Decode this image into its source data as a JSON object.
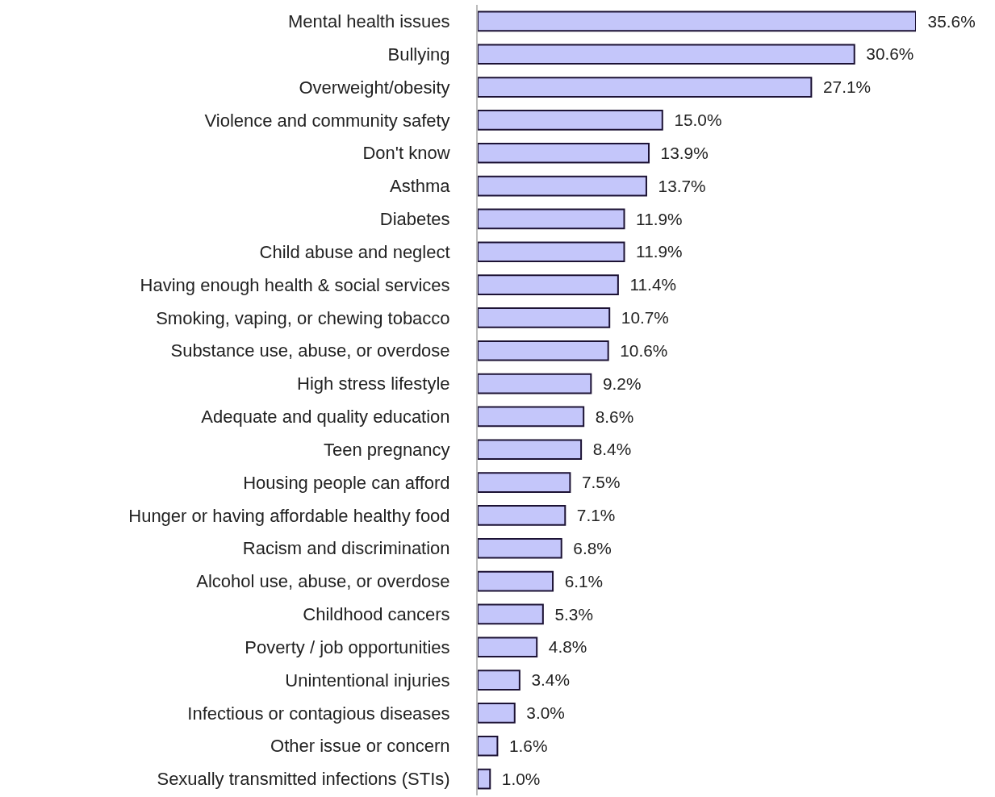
{
  "chart_data": {
    "type": "bar",
    "orientation": "horizontal",
    "categories": [
      "Mental health issues",
      "Bullying",
      "Overweight/obesity",
      "Violence and community safety",
      "Don't know",
      "Asthma",
      "Diabetes",
      "Child abuse and neglect",
      "Having enough health & social services",
      "Smoking, vaping, or chewing tobacco",
      "Substance use, abuse, or overdose",
      "High stress lifestyle",
      "Adequate and quality education",
      "Teen pregnancy",
      "Housing people can afford",
      "Hunger or having affordable healthy food",
      "Racism and discrimination",
      "Alcohol use, abuse, or overdose",
      "Childhood cancers",
      "Poverty / job opportunities",
      "Unintentional injuries",
      "Infectious or contagious diseases",
      "Other issue or concern",
      "Sexually transmitted infections (STIs)"
    ],
    "values": [
      35.6,
      30.6,
      27.1,
      15.0,
      13.9,
      13.7,
      11.9,
      11.9,
      11.4,
      10.7,
      10.6,
      9.2,
      8.6,
      8.4,
      7.5,
      7.1,
      6.8,
      6.1,
      5.3,
      4.8,
      3.4,
      3.0,
      1.6,
      1.0
    ],
    "value_labels": [
      "35.6%",
      "30.6%",
      "27.1%",
      "15.0%",
      "13.9%",
      "13.7%",
      "11.9%",
      "11.9%",
      "11.4%",
      "10.7%",
      "10.6%",
      "9.2%",
      "8.6%",
      "8.4%",
      "7.5%",
      "7.1%",
      "6.8%",
      "6.1%",
      "5.3%",
      "4.8%",
      "3.4%",
      "3.0%",
      "1.6%",
      "1.0%"
    ],
    "color": "#c4c6fa",
    "legend": false,
    "tick_labels": "y"
  }
}
